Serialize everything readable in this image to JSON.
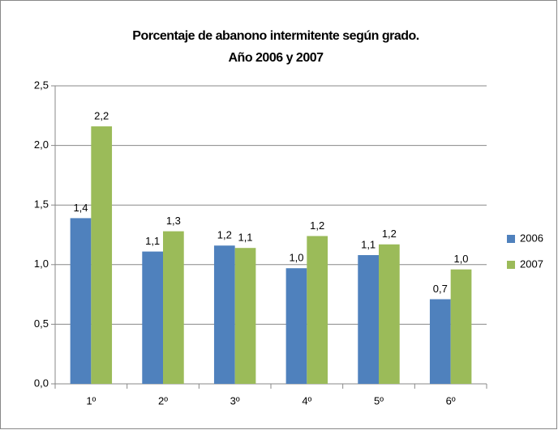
{
  "chart_data": {
    "type": "bar",
    "title": [
      "Porcentaje de abanono intermitente según grado.",
      "Año 2006 y 2007"
    ],
    "categories": [
      "1º",
      "2º",
      "3º",
      "4º",
      "5º",
      "6º"
    ],
    "series": [
      {
        "name": "2006",
        "color": "#4f81bd",
        "values": [
          1.39,
          1.11,
          1.16,
          0.97,
          1.08,
          0.71
        ],
        "value_labels": [
          "1,4",
          "1,1",
          "1,2",
          "1,0",
          "1,1",
          "0,7"
        ]
      },
      {
        "name": "2007",
        "color": "#9bbb59",
        "values": [
          2.16,
          1.28,
          1.14,
          1.24,
          1.17,
          0.96
        ],
        "value_labels": [
          "2,2",
          "1,3",
          "1,1",
          "1,2",
          "1,2",
          "1,0"
        ]
      }
    ],
    "ylim": [
      0,
      2.5
    ],
    "yticks": [
      {
        "value": 0,
        "label": "0,0"
      },
      {
        "value": 0.5,
        "label": "0,5"
      },
      {
        "value": 1,
        "label": "1,0"
      },
      {
        "value": 1.5,
        "label": "1,5"
      },
      {
        "value": 2,
        "label": "2,0"
      },
      {
        "value": 2.5,
        "label": "2,5"
      }
    ],
    "grid": true,
    "legend": "right"
  }
}
